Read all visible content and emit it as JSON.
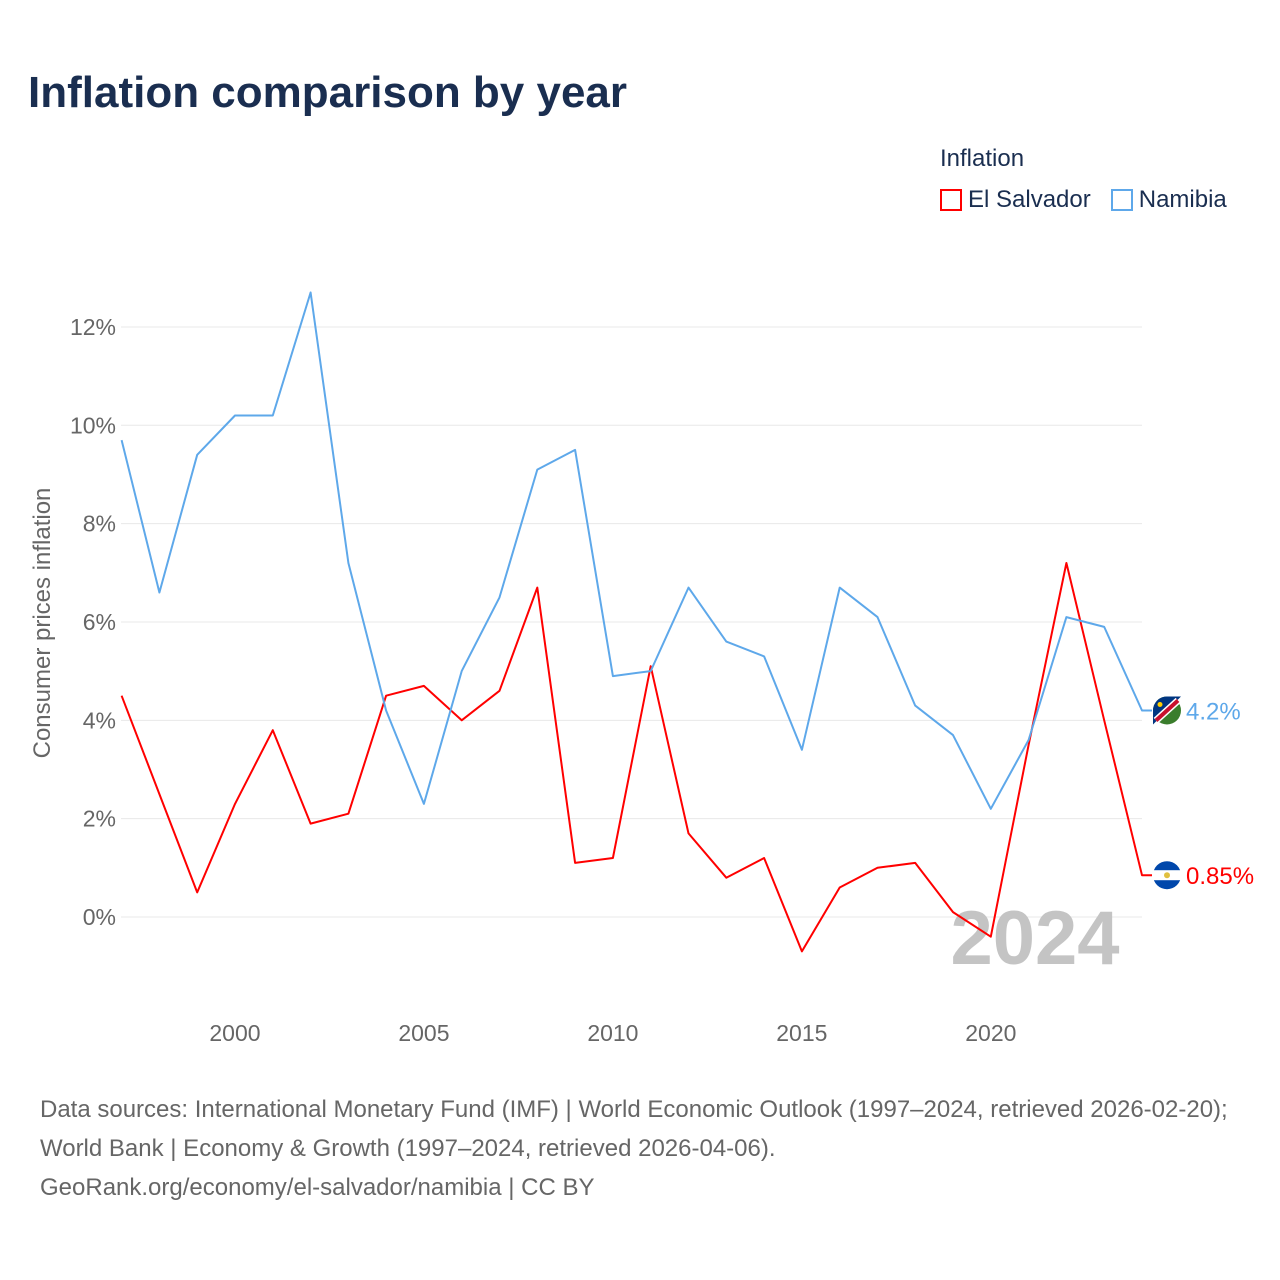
{
  "title": "Inflation comparison by year",
  "legend": {
    "title": "Inflation",
    "items": [
      "El Salvador",
      "Namibia"
    ]
  },
  "watermark_year": "2024",
  "footer": {
    "line1": "Data sources: International Monetary Fund (IMF) | World Economic Outlook (1997–2024, retrieved 2026-02-20); World Bank | Economy & Growth (1997–2024, retrieved 2026-04-06).",
    "line2": "GeoRank.org/economy/el-salvador/namibia | CC BY"
  },
  "chart_data": {
    "type": "line",
    "title": "Inflation comparison by year",
    "xlabel": "",
    "ylabel": "Consumer prices inflation",
    "x": [
      1997,
      1998,
      1999,
      2000,
      2001,
      2002,
      2003,
      2004,
      2005,
      2006,
      2007,
      2008,
      2009,
      2010,
      2011,
      2012,
      2013,
      2014,
      2015,
      2016,
      2017,
      2018,
      2019,
      2020,
      2021,
      2022,
      2023,
      2024
    ],
    "xlim": [
      1997,
      2024
    ],
    "ylim": [
      -1.8,
      13
    ],
    "x_ticks": [
      "2000",
      "2005",
      "2010",
      "2015",
      "2020"
    ],
    "y_ticks": [
      "0%",
      "2%",
      "4%",
      "6%",
      "8%",
      "10%",
      "12%"
    ],
    "grid": true,
    "legend_position": "top-right",
    "series": [
      {
        "name": "El Salvador",
        "color": "#ff0000",
        "end_label": "0.85%",
        "values": [
          4.5,
          2.5,
          0.5,
          2.3,
          3.8,
          1.9,
          2.1,
          4.5,
          4.7,
          4.0,
          4.6,
          6.7,
          1.1,
          1.2,
          5.1,
          1.7,
          0.8,
          1.2,
          -0.7,
          0.6,
          1.0,
          1.1,
          0.1,
          -0.4,
          3.5,
          7.2,
          4.0,
          0.85
        ]
      },
      {
        "name": "Namibia",
        "color": "#5ea8ea",
        "end_label": "4.2%",
        "values": [
          9.7,
          6.6,
          9.4,
          10.2,
          10.2,
          12.7,
          7.2,
          4.2,
          2.3,
          5.0,
          6.5,
          9.1,
          9.5,
          4.9,
          5.0,
          6.7,
          5.6,
          5.3,
          3.4,
          6.7,
          6.1,
          4.3,
          3.7,
          2.2,
          3.6,
          6.1,
          5.9,
          4.2
        ]
      }
    ]
  }
}
